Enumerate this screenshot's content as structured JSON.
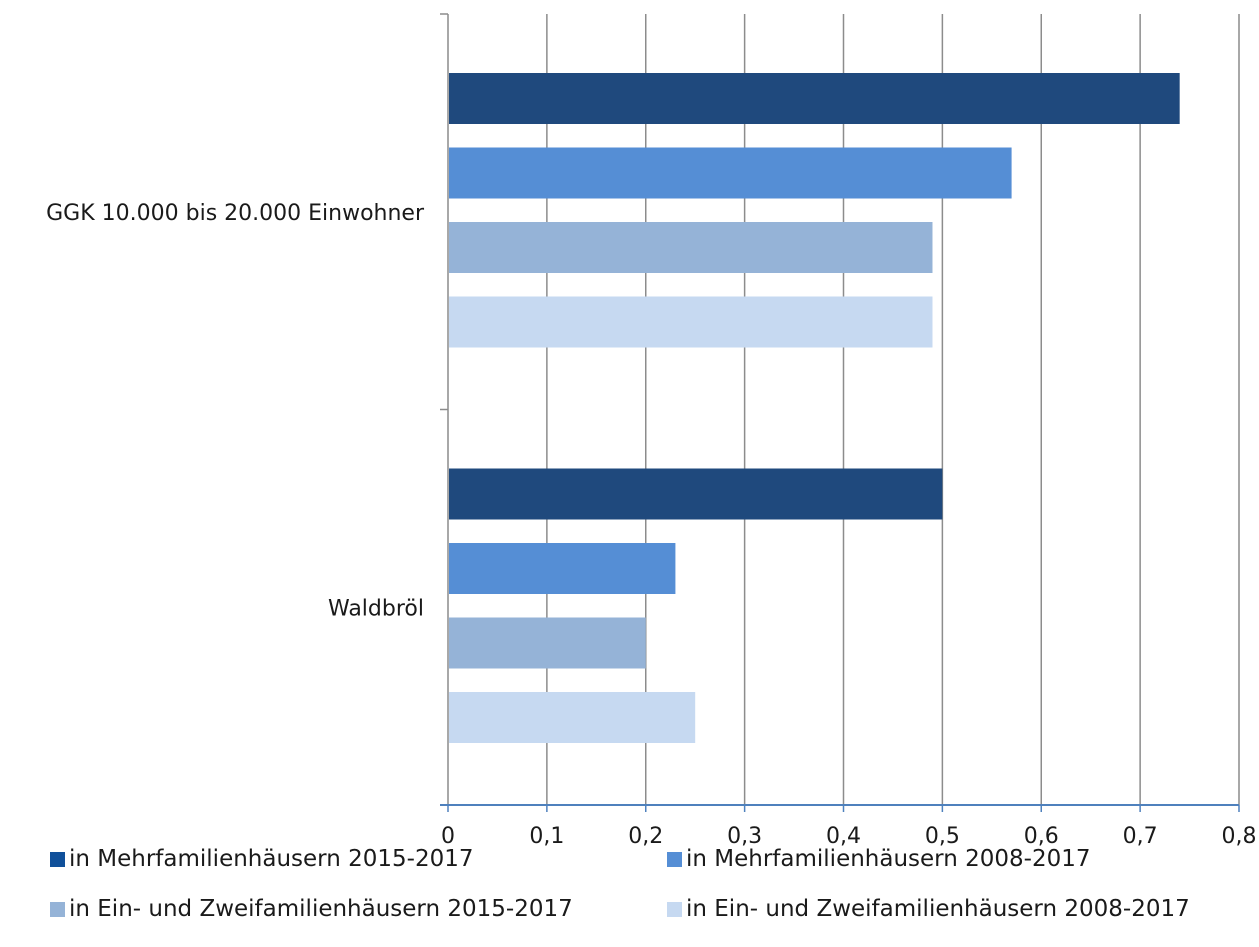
{
  "chart_data": {
    "type": "bar",
    "orientation": "horizontal",
    "categories": [
      "GGK 10.000 bis 20.000 Einwohner",
      "Waldbröl"
    ],
    "series": [
      {
        "name": "in Mehrfamilienhäusern 2015-2017",
        "color": "#1f497d",
        "values": [
          0.74,
          0.5
        ]
      },
      {
        "name": "in Mehrfamilienhäusern 2008-2017",
        "color": "#558ed5",
        "values": [
          0.57,
          0.23
        ]
      },
      {
        "name": "in Ein- und Zweifamilienhäusern 2015-2017",
        "color": "#95b3d7",
        "values": [
          0.49,
          0.2
        ]
      },
      {
        "name": "in Ein- und Zweifamilienhäusern 2008-2017",
        "color": "#c6d9f1",
        "values": [
          0.49,
          0.25
        ]
      }
    ],
    "xlim": [
      0,
      0.8
    ],
    "x_ticks": [
      "0",
      "0,1",
      "0,2",
      "0,3",
      "0,4",
      "0,5",
      "0,6",
      "0,7",
      "0,8"
    ],
    "grid": true,
    "legend_position": "bottom",
    "title": "",
    "xlabel": "",
    "ylabel": ""
  }
}
